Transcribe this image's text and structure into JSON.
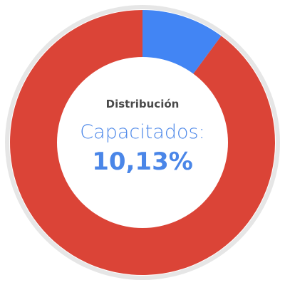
{
  "chart_data": {
    "type": "pie",
    "title": "Distribución",
    "subtitle": "Capacitados:",
    "value_label": "10,13%",
    "series": [
      {
        "value": 10.13,
        "color": "#4285f4"
      },
      {
        "value": 89.87,
        "color": "#db4437"
      }
    ],
    "outer_ring_color": "#e6e6e6"
  }
}
